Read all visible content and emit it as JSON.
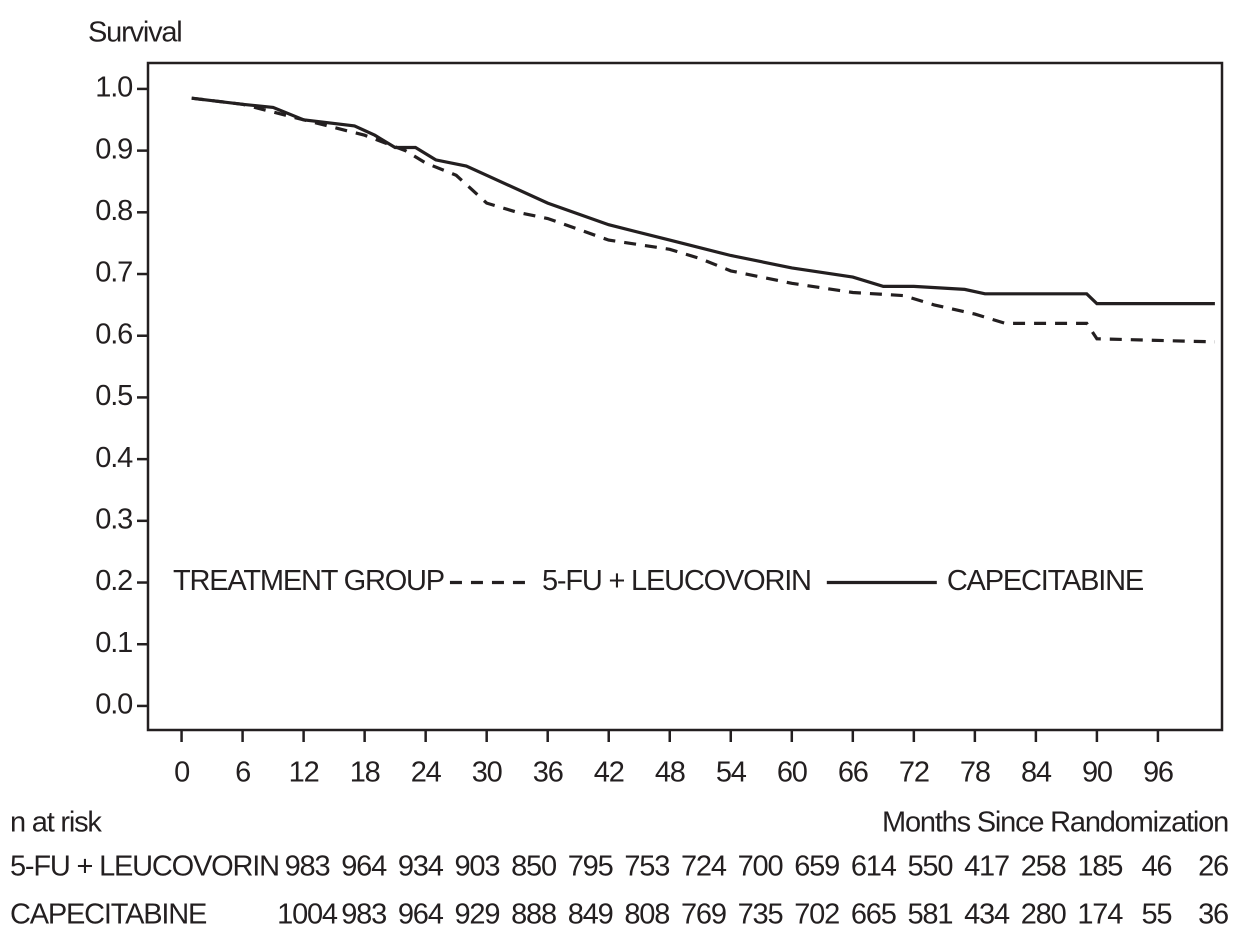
{
  "chart_data": {
    "type": "line",
    "y_label": "Survival",
    "x_label": "Months Since Randomization",
    "xlim": [
      -3.3,
      102.3
    ],
    "ylim": [
      -0.039,
      1.042
    ],
    "xticks": [
      0,
      6,
      12,
      18,
      24,
      30,
      36,
      42,
      48,
      54,
      60,
      66,
      72,
      78,
      84,
      90,
      96
    ],
    "yticks": [
      {
        "value": 0,
        "label": "0.0"
      },
      0.1,
      0.2,
      0.3,
      0.4,
      0.5,
      0.6,
      0.7,
      0.8,
      0.9,
      {
        "value": 1,
        "label": "1.0"
      }
    ],
    "legend_title": "TREATMENT GROUP",
    "series": [
      {
        "name": "5-FU + LEUCOVORIN",
        "color": "#231f20",
        "style": "dashed",
        "x": [
          1,
          6,
          12,
          18,
          22,
          24,
          27,
          30,
          33,
          36,
          42,
          48,
          51,
          54,
          60,
          66,
          71,
          74,
          78,
          81,
          89,
          90,
          101.6
        ],
        "values": [
          0.985,
          0.975,
          0.95,
          0.925,
          0.9,
          0.88,
          0.86,
          0.815,
          0.8,
          0.79,
          0.755,
          0.74,
          0.725,
          0.705,
          0.685,
          0.67,
          0.665,
          0.65,
          0.635,
          0.62,
          0.62,
          0.595,
          0.59
        ]
      },
      {
        "name": "CAPECITABINE",
        "color": "#231f20",
        "style": "solid",
        "x": [
          1,
          6,
          9,
          12,
          17,
          19,
          21,
          23,
          25,
          28,
          30,
          36,
          42,
          48,
          54,
          60,
          66,
          69,
          72,
          77,
          79,
          84,
          89,
          90,
          101.6
        ],
        "values": [
          0.985,
          0.975,
          0.97,
          0.95,
          0.94,
          0.925,
          0.905,
          0.905,
          0.885,
          0.875,
          0.86,
          0.815,
          0.78,
          0.755,
          0.73,
          0.71,
          0.695,
          0.68,
          0.68,
          0.675,
          0.668,
          0.668,
          0.668,
          0.652,
          0.652
        ]
      }
    ],
    "risk_table": {
      "title": "n at risk",
      "rows": [
        {
          "name": "5-FU + LEUCOVORIN",
          "values": [
            983,
            964,
            934,
            903,
            850,
            795,
            753,
            724,
            700,
            659,
            614,
            550,
            417,
            258,
            185,
            46,
            26
          ]
        },
        {
          "name": "CAPECITABINE",
          "values": [
            1004,
            983,
            964,
            929,
            888,
            849,
            808,
            769,
            735,
            702,
            665,
            581,
            434,
            280,
            174,
            55,
            36
          ]
        }
      ]
    }
  }
}
